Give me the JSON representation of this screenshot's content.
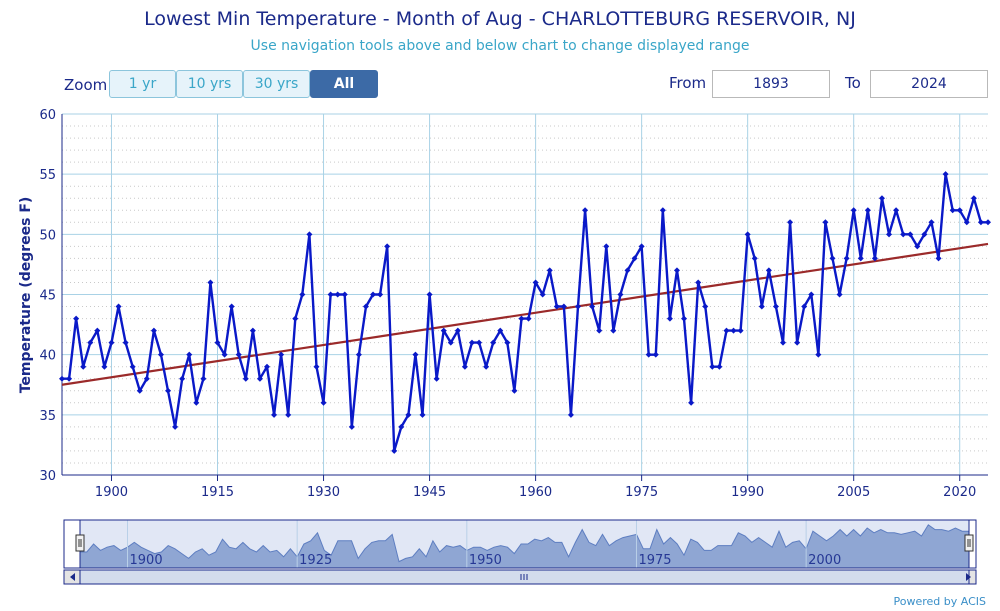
{
  "header": {
    "title": "Lowest Min Temperature - Month of Aug - CHARLOTTEBURG RESERVOIR, NJ",
    "subtitle": "Use navigation tools above and below chart to change displayed range"
  },
  "controls": {
    "zoom_label": "Zoom",
    "zoom_buttons": [
      "1 yr",
      "10 yrs",
      "30 yrs",
      "All"
    ],
    "active_zoom": "All",
    "from_label": "From",
    "from_value": "1893",
    "to_label": "To",
    "to_value": "2024"
  },
  "footer": {
    "powered_by": "Powered by ACIS"
  },
  "colors": {
    "series": "#0a19c8",
    "trend": "#9b2a2a",
    "grid": "#a9d2e6",
    "text": "#1b2a8a",
    "navigator_fill": "#9cb0d6"
  },
  "chart_data": {
    "type": "line",
    "title": "Lowest Min Temperature - Month of Aug - CHARLOTTEBURG RESERVOIR, NJ",
    "ylabel": "Temperature (degrees F)",
    "xlabel": "",
    "xlim": [
      1893,
      2024
    ],
    "ylim": [
      30,
      60
    ],
    "y_ticks": [
      30,
      35,
      40,
      45,
      50,
      55,
      60
    ],
    "x_ticks": [
      1900,
      1915,
      1930,
      1945,
      1960,
      1975,
      1990,
      2005,
      2020
    ],
    "navigator_ticks": [
      1900,
      1925,
      1950,
      1975,
      2000
    ],
    "grid": true,
    "legend": "none",
    "x": [
      1893,
      1894,
      1895,
      1896,
      1897,
      1898,
      1899,
      1900,
      1901,
      1902,
      1903,
      1904,
      1905,
      1906,
      1907,
      1908,
      1909,
      1910,
      1911,
      1912,
      1913,
      1914,
      1915,
      1916,
      1917,
      1918,
      1919,
      1920,
      1921,
      1922,
      1923,
      1924,
      1925,
      1926,
      1927,
      1928,
      1929,
      1930,
      1931,
      1932,
      1933,
      1934,
      1935,
      1936,
      1937,
      1938,
      1939,
      1940,
      1941,
      1942,
      1943,
      1944,
      1945,
      1946,
      1947,
      1948,
      1949,
      1950,
      1951,
      1952,
      1953,
      1954,
      1955,
      1956,
      1957,
      1958,
      1959,
      1960,
      1961,
      1962,
      1963,
      1964,
      1965,
      1966,
      1967,
      1968,
      1969,
      1970,
      1971,
      1972,
      1973,
      1974,
      1975,
      1976,
      1977,
      1978,
      1979,
      1980,
      1981,
      1982,
      1983,
      1984,
      1985,
      1986,
      1987,
      1988,
      1989,
      1990,
      1991,
      1992,
      1993,
      1994,
      1995,
      1996,
      1997,
      1998,
      1999,
      2000,
      2001,
      2002,
      2003,
      2004,
      2005,
      2006,
      2007,
      2008,
      2009,
      2010,
      2011,
      2012,
      2013,
      2014,
      2015,
      2016,
      2017,
      2018,
      2019,
      2020,
      2021,
      2022,
      2023,
      2024
    ],
    "series": [
      {
        "values": [
          38,
          38,
          43,
          39,
          41,
          42,
          39,
          41,
          44,
          41,
          39,
          37,
          38,
          42,
          40,
          37,
          34,
          38,
          40,
          36,
          38,
          46,
          41,
          40,
          44,
          40,
          38,
          42,
          38,
          39,
          35,
          40,
          35,
          43,
          45,
          50,
          39,
          36,
          45,
          45,
          45,
          34,
          40,
          44,
          45,
          45,
          49,
          32,
          34,
          35,
          40,
          35,
          45,
          38,
          42,
          41,
          42,
          39,
          41,
          41,
          39,
          41,
          42,
          41,
          37,
          43,
          43,
          46,
          45,
          47,
          44,
          44,
          35,
          44,
          52,
          44,
          42,
          49,
          42,
          45,
          47,
          48,
          49,
          40,
          40,
          52,
          43,
          47,
          43,
          36,
          46,
          44,
          39,
          39,
          42,
          42,
          42,
          50,
          48,
          44,
          47,
          44,
          41,
          51,
          41,
          44,
          45,
          40,
          51,
          48,
          45,
          48,
          52,
          48,
          52,
          48,
          53,
          50,
          52,
          50,
          50,
          49,
          50,
          51,
          48,
          55,
          52,
          52,
          51,
          53,
          51,
          51
        ]
      }
    ],
    "trendline": {
      "start": [
        1893,
        37.5
      ],
      "end": [
        2024,
        49.2
      ]
    }
  }
}
